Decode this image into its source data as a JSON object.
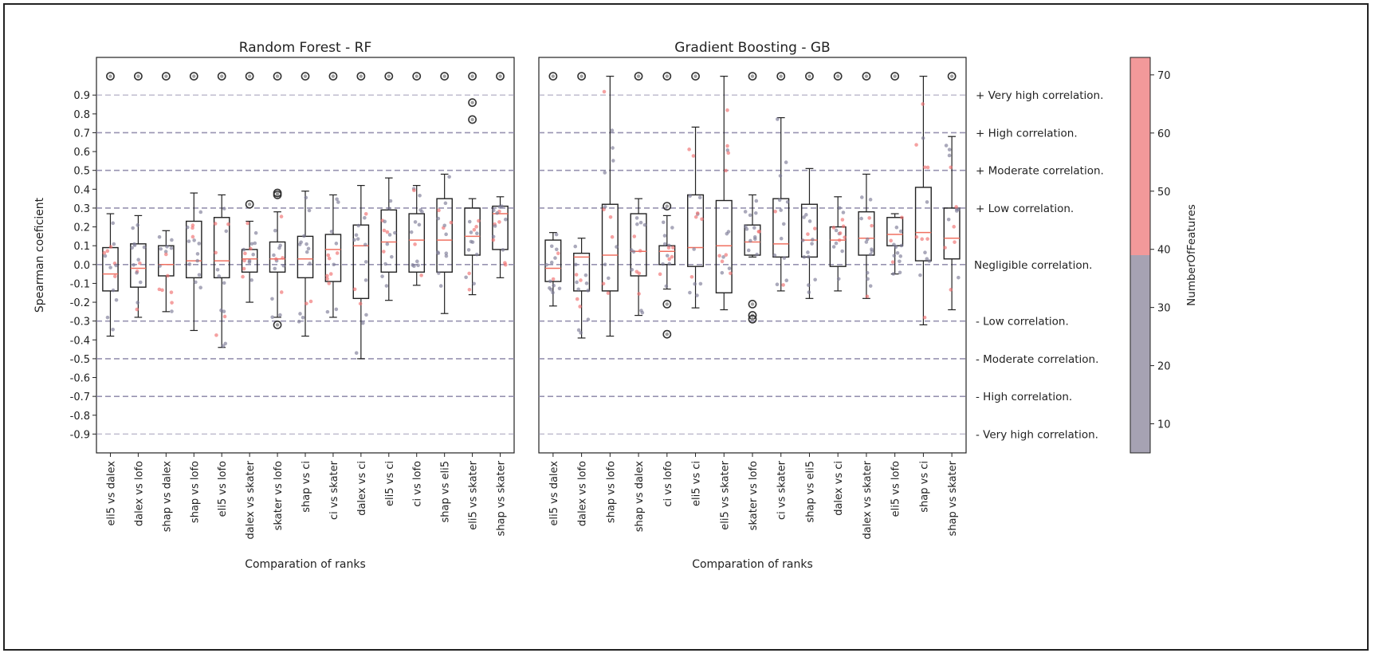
{
  "chart_data": [
    {
      "type": "box",
      "title": "Random Forest - RF",
      "xlabel": "Comparation of ranks",
      "ylabel": "Spearman coeficient",
      "ylim": [
        -1.0,
        1.1
      ],
      "yticks": [
        0.9,
        0.8,
        0.7,
        0.6,
        0.5,
        0.4,
        0.3,
        0.2,
        0.1,
        0.0,
        -0.1,
        -0.2,
        -0.3,
        -0.4,
        -0.5,
        -0.6,
        -0.7,
        -0.8,
        -0.9
      ],
      "ytick_labels": [
        "0.9",
        "0.8",
        "0.7",
        "0.6",
        "0.5",
        "0.4",
        "0.3",
        "0.2",
        "0.1",
        "0.0",
        "-0.1",
        "-0.2",
        "-0.3",
        "-0.4",
        "-0.5",
        "-0.6",
        "-0.7",
        "-0.8",
        "-0.9"
      ],
      "categories": [
        "eli5 vs dalex",
        "dalex vs lofo",
        "shap vs dalex",
        "shap vs lofo",
        "eli5 vs lofo",
        "dalex vs skater",
        "skater vs lofo",
        "shap vs ci",
        "ci vs skater",
        "dalex vs ci",
        "eli5 vs ci",
        "ci vs lofo",
        "shap vs eli5",
        "eli5 vs skater",
        "shap vs skater"
      ],
      "boxes": [
        {
          "whislo": -0.38,
          "q1": -0.14,
          "med": -0.05,
          "q3": 0.09,
          "whishi": 0.27,
          "fliers": [
            1.0
          ]
        },
        {
          "whislo": -0.28,
          "q1": -0.12,
          "med": -0.02,
          "q3": 0.11,
          "whishi": 0.26,
          "fliers": [
            1.0
          ]
        },
        {
          "whislo": -0.25,
          "q1": -0.06,
          "med": 0.0,
          "q3": 0.1,
          "whishi": 0.18,
          "fliers": [
            1.0
          ]
        },
        {
          "whislo": -0.35,
          "q1": -0.07,
          "med": 0.02,
          "q3": 0.23,
          "whishi": 0.38,
          "fliers": [
            1.0
          ]
        },
        {
          "whislo": -0.44,
          "q1": -0.07,
          "med": 0.02,
          "q3": 0.25,
          "whishi": 0.37,
          "fliers": [
            1.0
          ]
        },
        {
          "whislo": -0.2,
          "q1": -0.04,
          "med": 0.03,
          "q3": 0.08,
          "whishi": 0.23,
          "fliers": [
            0.32,
            1.0
          ]
        },
        {
          "whislo": -0.28,
          "q1": -0.04,
          "med": 0.03,
          "q3": 0.12,
          "whishi": 0.28,
          "fliers": [
            0.37,
            0.38,
            -0.32,
            1.0
          ]
        },
        {
          "whislo": -0.38,
          "q1": -0.07,
          "med": 0.03,
          "q3": 0.15,
          "whishi": 0.39,
          "fliers": [
            1.0
          ]
        },
        {
          "whislo": -0.28,
          "q1": -0.09,
          "med": 0.08,
          "q3": 0.16,
          "whishi": 0.37,
          "fliers": [
            1.0
          ]
        },
        {
          "whislo": -0.5,
          "q1": -0.18,
          "med": 0.1,
          "q3": 0.21,
          "whishi": 0.42,
          "fliers": [
            1.0
          ]
        },
        {
          "whislo": -0.19,
          "q1": -0.04,
          "med": 0.12,
          "q3": 0.29,
          "whishi": 0.46,
          "fliers": [
            1.0
          ]
        },
        {
          "whislo": -0.11,
          "q1": -0.04,
          "med": 0.13,
          "q3": 0.27,
          "whishi": 0.42,
          "fliers": [
            1.0
          ]
        },
        {
          "whislo": -0.26,
          "q1": -0.04,
          "med": 0.13,
          "q3": 0.35,
          "whishi": 0.48,
          "fliers": [
            1.0
          ]
        },
        {
          "whislo": -0.16,
          "q1": 0.05,
          "med": 0.15,
          "q3": 0.3,
          "whishi": 0.35,
          "fliers": [
            0.86,
            0.77,
            1.0
          ]
        },
        {
          "whislo": -0.07,
          "q1": 0.08,
          "med": 0.27,
          "q3": 0.31,
          "whishi": 0.36,
          "fliers": [
            1.0
          ]
        }
      ]
    },
    {
      "type": "box",
      "title": "Gradient Boosting -  GB",
      "xlabel": "Comparation of ranks",
      "ylim": [
        -1.0,
        1.1
      ],
      "categories": [
        "eli5 vs dalex",
        "dalex vs lofo",
        "shap vs lofo",
        "shap vs dalex",
        "ci vs lofo",
        "eli5 vs ci",
        "eli5 vs skater",
        "skater vs lofo",
        "ci vs skater",
        "shap vs eli5",
        "dalex vs ci",
        "dalex vs skater",
        "eli5 vs lofo",
        "shap vs ci",
        "shap vs skater"
      ],
      "boxes": [
        {
          "whislo": -0.22,
          "q1": -0.09,
          "med": -0.02,
          "q3": 0.13,
          "whishi": 0.17,
          "fliers": [
            1.0
          ]
        },
        {
          "whislo": -0.39,
          "q1": -0.14,
          "med": 0.04,
          "q3": 0.06,
          "whishi": 0.14,
          "fliers": [
            1.0
          ]
        },
        {
          "whislo": -0.38,
          "q1": -0.14,
          "med": 0.05,
          "q3": 0.32,
          "whishi": 1.0,
          "fliers": []
        },
        {
          "whislo": -0.27,
          "q1": -0.06,
          "med": 0.07,
          "q3": 0.27,
          "whishi": 0.35,
          "fliers": [
            1.0
          ]
        },
        {
          "whislo": -0.13,
          "q1": 0.0,
          "med": 0.07,
          "q3": 0.1,
          "whishi": 0.26,
          "fliers": [
            0.31,
            -0.21,
            -0.37,
            1.0
          ]
        },
        {
          "whislo": -0.23,
          "q1": -0.01,
          "med": 0.09,
          "q3": 0.37,
          "whishi": 0.73,
          "fliers": [
            1.0
          ]
        },
        {
          "whislo": -0.24,
          "q1": -0.15,
          "med": 0.1,
          "q3": 0.34,
          "whishi": 1.0,
          "fliers": []
        },
        {
          "whislo": 0.04,
          "q1": 0.05,
          "med": 0.12,
          "q3": 0.21,
          "whishi": 0.37,
          "fliers": [
            -0.21,
            -0.27,
            -0.29,
            1.0
          ]
        },
        {
          "whislo": -0.14,
          "q1": 0.04,
          "med": 0.11,
          "q3": 0.35,
          "whishi": 0.78,
          "fliers": [
            1.0
          ]
        },
        {
          "whislo": -0.18,
          "q1": 0.04,
          "med": 0.13,
          "q3": 0.32,
          "whishi": 0.51,
          "fliers": [
            1.0
          ]
        },
        {
          "whislo": -0.14,
          "q1": -0.01,
          "med": 0.13,
          "q3": 0.2,
          "whishi": 0.36,
          "fliers": [
            1.0
          ]
        },
        {
          "whislo": -0.18,
          "q1": 0.05,
          "med": 0.14,
          "q3": 0.28,
          "whishi": 0.48,
          "fliers": [
            1.0
          ]
        },
        {
          "whislo": -0.05,
          "q1": 0.1,
          "med": 0.16,
          "q3": 0.25,
          "whishi": 0.27,
          "fliers": [
            1.0
          ]
        },
        {
          "whislo": -0.32,
          "q1": 0.02,
          "med": 0.17,
          "q3": 0.41,
          "whishi": 1.0,
          "fliers": []
        },
        {
          "whislo": -0.24,
          "q1": 0.03,
          "med": 0.14,
          "q3": 0.3,
          "whishi": 0.68,
          "fliers": [
            1.0
          ]
        }
      ]
    }
  ],
  "reference_lines": [
    0.9,
    0.7,
    0.5,
    0.3,
    0.0,
    -0.3,
    -0.5,
    -0.7,
    -0.9
  ],
  "correlation_labels": [
    {
      "y": 0.9,
      "text": "+ Very high correlation."
    },
    {
      "y": 0.7,
      "text": "+ High correlation."
    },
    {
      "y": 0.5,
      "text": "+ Moderate correlation."
    },
    {
      "y": 0.3,
      "text": "+ Low correlation."
    },
    {
      "y": 0.0,
      "text": "Negligible correlation."
    },
    {
      "y": -0.3,
      "text": "- Low correlation."
    },
    {
      "y": -0.5,
      "text": "- Moderate correlation."
    },
    {
      "y": -0.7,
      "text": "- High correlation."
    },
    {
      "y": -0.9,
      "text": "- Very high correlation."
    }
  ],
  "colorbar": {
    "label": "NumberOfFeatures",
    "min": 5,
    "max": 73,
    "split": 39,
    "ticks": [
      "10",
      "20",
      "30",
      "40",
      "50",
      "60",
      "70"
    ],
    "tick_values": [
      10,
      20,
      30,
      40,
      50,
      60,
      70
    ],
    "low_color": "#a6a2b3",
    "high_color": "#f2999a"
  },
  "colors": {
    "median": "#f07060",
    "grid": "#8c88a8",
    "low_dot": "#7d7b96",
    "high_dot": "#ef6e6e"
  }
}
